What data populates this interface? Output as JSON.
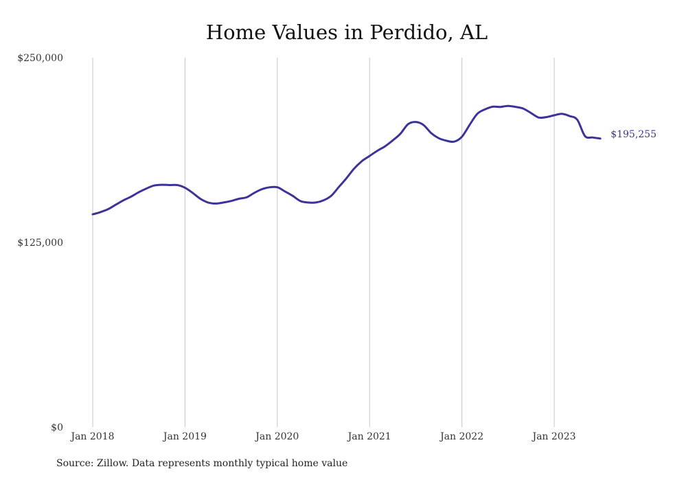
{
  "chart_data": {
    "type": "line",
    "title": "Home Values in Perdido, AL",
    "source": "Source: Zillow. Data represents monthly typical home value",
    "xlabel": "",
    "ylabel": "",
    "ylim": [
      0,
      250000
    ],
    "y_ticks": [
      {
        "value": 0,
        "label": "$0"
      },
      {
        "value": 125000,
        "label": "$125,000"
      },
      {
        "value": 250000,
        "label": "$250,000"
      }
    ],
    "x_ticks": [
      {
        "value": 0,
        "label": "Jan 2018"
      },
      {
        "value": 12,
        "label": "Jan 2019"
      },
      {
        "value": 24,
        "label": "Jan 2020"
      },
      {
        "value": 36,
        "label": "Jan 2021"
      },
      {
        "value": 48,
        "label": "Jan 2022"
      },
      {
        "value": 60,
        "label": "Jan 2023"
      }
    ],
    "grid": "vertical",
    "color": "#3b3399",
    "end_label": "$195,255",
    "series": [
      {
        "x": [
          0,
          1,
          2,
          3,
          4,
          5,
          6,
          7,
          8,
          9,
          10,
          11,
          12,
          13,
          14,
          15,
          16,
          17,
          18,
          19,
          20,
          21,
          22,
          23,
          24,
          25,
          26,
          27,
          28,
          29,
          30,
          31,
          32,
          33,
          34,
          35,
          36,
          37,
          38,
          39,
          40,
          41,
          42,
          43,
          44,
          45,
          46,
          47,
          48,
          49,
          50,
          51,
          52,
          53,
          54,
          55,
          56,
          57,
          58,
          59,
          60,
          61,
          62,
          63,
          64,
          65,
          66
        ],
        "values": [
          144000,
          145500,
          147500,
          150500,
          153500,
          156000,
          159000,
          161500,
          163500,
          164000,
          163800,
          163800,
          162000,
          158500,
          154500,
          152000,
          151300,
          152000,
          153000,
          154500,
          155500,
          158500,
          161000,
          162300,
          162300,
          159500,
          156500,
          153000,
          152000,
          152000,
          153500,
          156500,
          162500,
          168500,
          175000,
          180000,
          183500,
          187000,
          190000,
          194000,
          198500,
          205000,
          206500,
          204500,
          199000,
          195500,
          193800,
          193200,
          196500,
          204500,
          212000,
          215000,
          216800,
          216700,
          217400,
          216700,
          215500,
          212500,
          209500,
          209800,
          211000,
          212000,
          210500,
          208000,
          197000,
          196000,
          195255
        ]
      }
    ]
  }
}
